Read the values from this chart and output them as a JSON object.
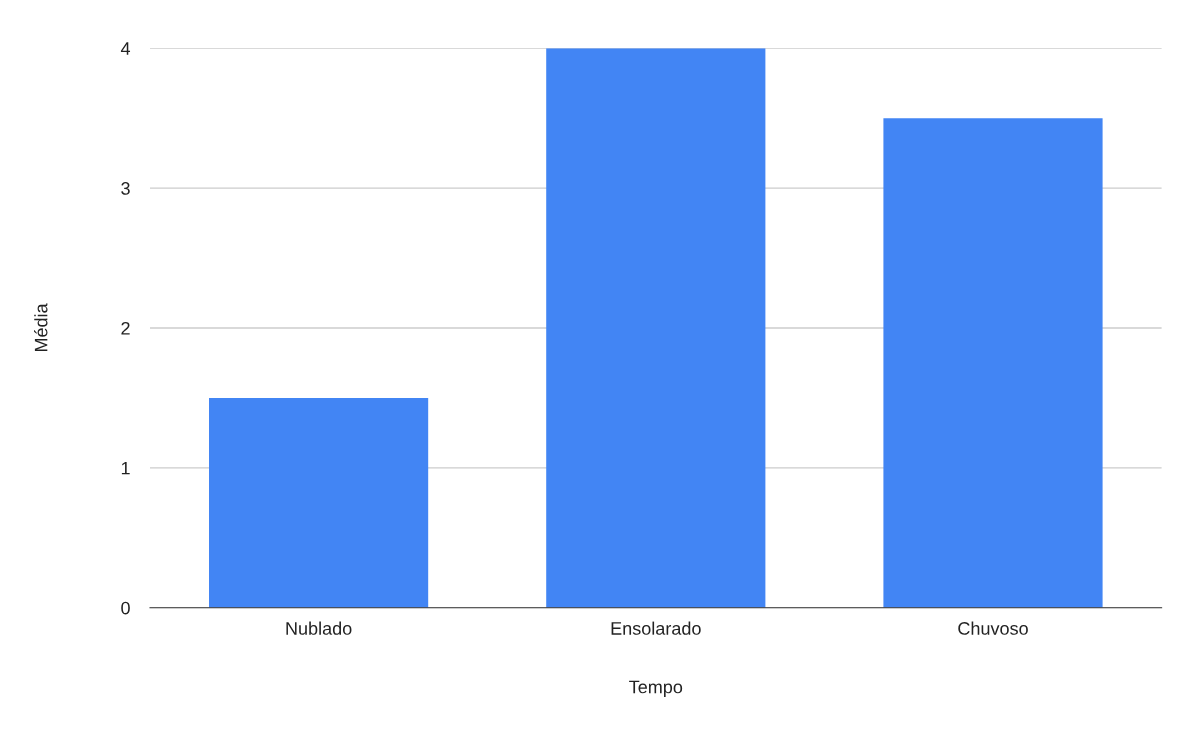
{
  "chart_data": {
    "type": "bar",
    "xlabel": "Tempo",
    "ylabel": "Média",
    "categories": [
      "Nublado",
      "Ensolarado",
      "Chuvoso"
    ],
    "values": [
      1.5,
      4,
      3.5
    ],
    "color": "#4285f4",
    "ylim": [
      0,
      4
    ],
    "yticks": [
      0,
      1,
      2,
      3,
      4
    ],
    "grid": "y",
    "legend": false
  }
}
